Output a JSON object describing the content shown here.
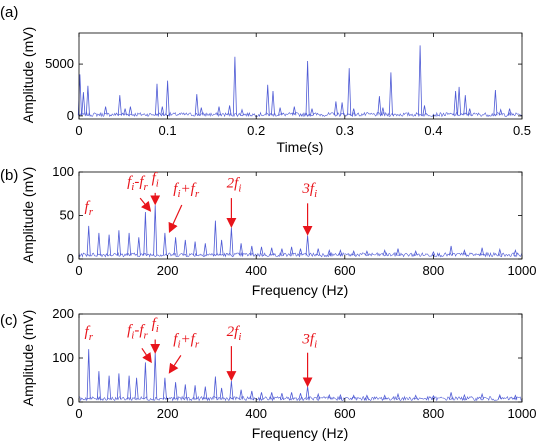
{
  "chart_data": [
    {
      "panel_label": "(a)",
      "type": "line",
      "xlabel": "Time(s)",
      "ylabel": "Amplitude (mV)",
      "xlim": [
        0,
        0.5
      ],
      "ylim": [
        -300,
        8000
      ],
      "xticks": [
        "0",
        "0.1",
        "0.2",
        "0.3",
        "0.4",
        "0.5"
      ],
      "yticks": [
        "0",
        "5000"
      ],
      "line_color": "#4f5bd5",
      "baseline": 60,
      "spikes": [
        {
          "x": 0.001,
          "y": 4000
        },
        {
          "x": 0.005,
          "y": 2300
        },
        {
          "x": 0.01,
          "y": 2900
        },
        {
          "x": 0.03,
          "y": 900
        },
        {
          "x": 0.046,
          "y": 2000
        },
        {
          "x": 0.052,
          "y": 700
        },
        {
          "x": 0.058,
          "y": 900
        },
        {
          "x": 0.088,
          "y": 3100
        },
        {
          "x": 0.094,
          "y": 900
        },
        {
          "x": 0.1,
          "y": 3400
        },
        {
          "x": 0.133,
          "y": 2100
        },
        {
          "x": 0.138,
          "y": 800
        },
        {
          "x": 0.158,
          "y": 900
        },
        {
          "x": 0.17,
          "y": 1000
        },
        {
          "x": 0.176,
          "y": 5700
        },
        {
          "x": 0.184,
          "y": 600
        },
        {
          "x": 0.213,
          "y": 3000
        },
        {
          "x": 0.219,
          "y": 2400
        },
        {
          "x": 0.227,
          "y": 800
        },
        {
          "x": 0.243,
          "y": 900
        },
        {
          "x": 0.258,
          "y": 5300
        },
        {
          "x": 0.263,
          "y": 700
        },
        {
          "x": 0.29,
          "y": 1400
        },
        {
          "x": 0.297,
          "y": 1300
        },
        {
          "x": 0.305,
          "y": 4600
        },
        {
          "x": 0.31,
          "y": 700
        },
        {
          "x": 0.339,
          "y": 1900
        },
        {
          "x": 0.343,
          "y": 800
        },
        {
          "x": 0.352,
          "y": 4200
        },
        {
          "x": 0.385,
          "y": 6800
        },
        {
          "x": 0.39,
          "y": 1000
        },
        {
          "x": 0.425,
          "y": 2400
        },
        {
          "x": 0.429,
          "y": 2800
        },
        {
          "x": 0.436,
          "y": 2000
        },
        {
          "x": 0.441,
          "y": 700
        },
        {
          "x": 0.47,
          "y": 2500
        },
        {
          "x": 0.476,
          "y": 600
        },
        {
          "x": 0.486,
          "y": 700
        }
      ],
      "annotations": []
    },
    {
      "panel_label": "(b)",
      "type": "line",
      "xlabel": "Frequency (Hz)",
      "ylabel": "Amplitude (mV)",
      "xlim": [
        0,
        1000
      ],
      "ylim": [
        0,
        100
      ],
      "xticks": [
        "0",
        "200",
        "400",
        "600",
        "800",
        "1000"
      ],
      "yticks": [
        "0",
        "50",
        "100"
      ],
      "line_color": "#4f5bd5",
      "baseline": 4,
      "peaks": [
        {
          "x": 22,
          "y": 38
        },
        {
          "x": 45,
          "y": 30
        },
        {
          "x": 68,
          "y": 28
        },
        {
          "x": 90,
          "y": 33
        },
        {
          "x": 113,
          "y": 30
        },
        {
          "x": 135,
          "y": 25
        },
        {
          "x": 150,
          "y": 54
        },
        {
          "x": 172,
          "y": 62
        },
        {
          "x": 194,
          "y": 30
        },
        {
          "x": 218,
          "y": 25
        },
        {
          "x": 240,
          "y": 22
        },
        {
          "x": 262,
          "y": 20
        },
        {
          "x": 285,
          "y": 18
        },
        {
          "x": 308,
          "y": 44
        },
        {
          "x": 322,
          "y": 22
        },
        {
          "x": 344,
          "y": 36
        },
        {
          "x": 366,
          "y": 18
        },
        {
          "x": 390,
          "y": 15
        },
        {
          "x": 412,
          "y": 14
        },
        {
          "x": 435,
          "y": 13
        },
        {
          "x": 458,
          "y": 12
        },
        {
          "x": 480,
          "y": 14
        },
        {
          "x": 500,
          "y": 12
        },
        {
          "x": 516,
          "y": 27
        },
        {
          "x": 540,
          "y": 12
        },
        {
          "x": 565,
          "y": 10
        },
        {
          "x": 590,
          "y": 10
        },
        {
          "x": 620,
          "y": 9
        },
        {
          "x": 650,
          "y": 9
        },
        {
          "x": 690,
          "y": 10
        },
        {
          "x": 720,
          "y": 12
        },
        {
          "x": 760,
          "y": 9
        },
        {
          "x": 800,
          "y": 8
        },
        {
          "x": 840,
          "y": 15
        },
        {
          "x": 870,
          "y": 10
        },
        {
          "x": 910,
          "y": 13
        },
        {
          "x": 950,
          "y": 11
        },
        {
          "x": 985,
          "y": 10
        }
      ],
      "annotations": [
        {
          "base": "f",
          "sub": "r",
          "text_x": 22,
          "text_y": 55
        },
        {
          "base": "f",
          "sub": "i",
          "op": "-",
          "base2": "f",
          "sub2": "r",
          "text_x": 132,
          "text_y": 84,
          "arrow_from": [
            138,
            70
          ],
          "arrow_to": [
            160,
            56
          ]
        },
        {
          "base": "f",
          "sub": "i",
          "text_x": 172,
          "text_y": 88,
          "arrow_from": [
            172,
            76
          ],
          "arrow_to": [
            172,
            64
          ]
        },
        {
          "base": "f",
          "sub": "i",
          "op": "+",
          "base2": "f",
          "sub2": "r",
          "text_x": 242,
          "text_y": 76,
          "arrow_from": [
            232,
            62
          ],
          "arrow_to": [
            205,
            32
          ]
        },
        {
          "prefix": "2",
          "base": "f",
          "sub": "i",
          "text_x": 350,
          "text_y": 82,
          "arrow_from": [
            344,
            70
          ],
          "arrow_to": [
            344,
            38
          ]
        },
        {
          "prefix": "3",
          "base": "f",
          "sub": "i",
          "text_x": 521,
          "text_y": 76,
          "arrow_from": [
            516,
            64
          ],
          "arrow_to": [
            516,
            29
          ]
        }
      ]
    },
    {
      "panel_label": "(c)",
      "type": "line",
      "xlabel": "Frequency (Hz)",
      "ylabel": "Amplitude (mV)",
      "xlim": [
        0,
        1000
      ],
      "ylim": [
        0,
        200
      ],
      "xticks": [
        "0",
        "200",
        "400",
        "600",
        "800",
        "1000"
      ],
      "yticks": [
        "0",
        "100",
        "200"
      ],
      "line_color": "#4f5bd5",
      "baseline": 6,
      "peaks": [
        {
          "x": 22,
          "y": 120
        },
        {
          "x": 45,
          "y": 70
        },
        {
          "x": 68,
          "y": 60
        },
        {
          "x": 90,
          "y": 65
        },
        {
          "x": 113,
          "y": 60
        },
        {
          "x": 130,
          "y": 55
        },
        {
          "x": 150,
          "y": 90
        },
        {
          "x": 172,
          "y": 112
        },
        {
          "x": 194,
          "y": 55
        },
        {
          "x": 218,
          "y": 45
        },
        {
          "x": 240,
          "y": 40
        },
        {
          "x": 262,
          "y": 38
        },
        {
          "x": 285,
          "y": 35
        },
        {
          "x": 308,
          "y": 58
        },
        {
          "x": 322,
          "y": 32
        },
        {
          "x": 344,
          "y": 48
        },
        {
          "x": 366,
          "y": 28
        },
        {
          "x": 390,
          "y": 25
        },
        {
          "x": 412,
          "y": 22
        },
        {
          "x": 435,
          "y": 22
        },
        {
          "x": 458,
          "y": 20
        },
        {
          "x": 480,
          "y": 22
        },
        {
          "x": 500,
          "y": 20
        },
        {
          "x": 516,
          "y": 35
        },
        {
          "x": 540,
          "y": 18
        },
        {
          "x": 565,
          "y": 16
        },
        {
          "x": 590,
          "y": 16
        },
        {
          "x": 620,
          "y": 15
        },
        {
          "x": 650,
          "y": 15
        },
        {
          "x": 690,
          "y": 15
        },
        {
          "x": 720,
          "y": 18
        },
        {
          "x": 760,
          "y": 15
        },
        {
          "x": 800,
          "y": 14
        },
        {
          "x": 840,
          "y": 22
        },
        {
          "x": 870,
          "y": 16
        },
        {
          "x": 910,
          "y": 18
        },
        {
          "x": 950,
          "y": 16
        },
        {
          "x": 985,
          "y": 15
        }
      ],
      "annotations": [
        {
          "base": "f",
          "sub": "r",
          "text_x": 22,
          "text_y": 150
        },
        {
          "base": "f",
          "sub": "i",
          "op": "-",
          "base2": "f",
          "sub2": "r",
          "text_x": 132,
          "text_y": 153,
          "arrow_from": [
            142,
            122
          ],
          "arrow_to": [
            162,
            92
          ]
        },
        {
          "base": "f",
          "sub": "i",
          "text_x": 172,
          "text_y": 168,
          "arrow_from": [
            172,
            142
          ],
          "arrow_to": [
            172,
            114
          ]
        },
        {
          "base": "f",
          "sub": "i",
          "op": "+",
          "base2": "f",
          "sub2": "r",
          "text_x": 242,
          "text_y": 133,
          "arrow_from": [
            230,
            106
          ],
          "arrow_to": [
            205,
            68
          ]
        },
        {
          "prefix": "2",
          "base": "f",
          "sub": "i",
          "text_x": 350,
          "text_y": 150,
          "arrow_from": [
            344,
            127
          ],
          "arrow_to": [
            344,
            52
          ]
        },
        {
          "prefix": "3",
          "base": "f",
          "sub": "i",
          "text_x": 521,
          "text_y": 133,
          "arrow_from": [
            516,
            112
          ],
          "arrow_to": [
            516,
            38
          ]
        }
      ]
    }
  ]
}
